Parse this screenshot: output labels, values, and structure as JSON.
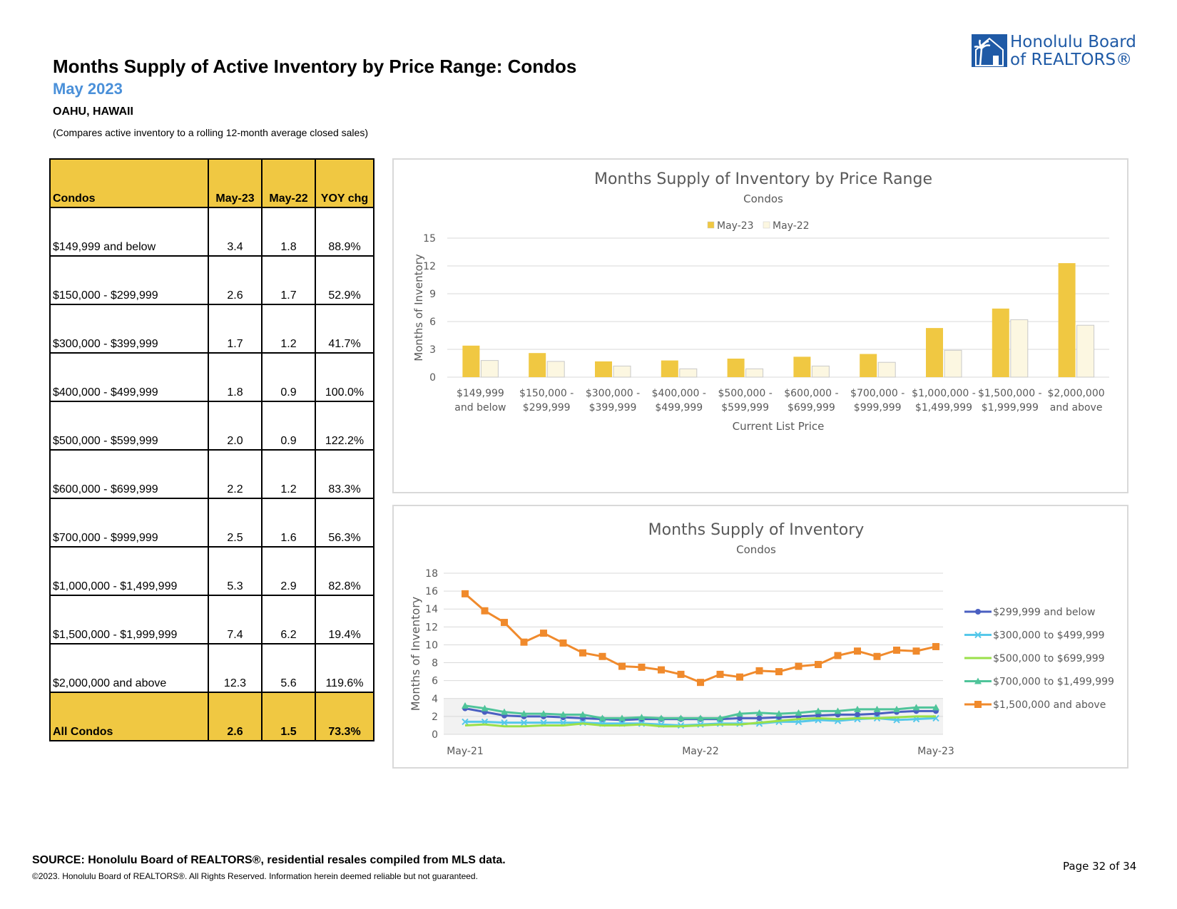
{
  "header": {
    "title": "Months Supply of Active Inventory by Price Range: Condos",
    "subtitle": "May 2023",
    "region": "OAHU, HAWAII",
    "note": "(Compares active inventory to a rolling 12-month average closed sales)"
  },
  "logo": {
    "line1": "Honolulu Board",
    "line2": "of REALTORS®"
  },
  "table": {
    "headers": [
      "Condos",
      "May-23",
      "May-22",
      "YOY chg"
    ],
    "rows": [
      [
        "$149,999 and below",
        "3.4",
        "1.8",
        "88.9%"
      ],
      [
        "$150,000 - $299,999",
        "2.6",
        "1.7",
        "52.9%"
      ],
      [
        "$300,000 - $399,999",
        "1.7",
        "1.2",
        "41.7%"
      ],
      [
        "$400,000 - $499,999",
        "1.8",
        "0.9",
        "100.0%"
      ],
      [
        "$500,000 - $599,999",
        "2.0",
        "0.9",
        "122.2%"
      ],
      [
        "$600,000 - $699,999",
        "2.2",
        "1.2",
        "83.3%"
      ],
      [
        "$700,000 - $999,999",
        "2.5",
        "1.6",
        "56.3%"
      ],
      [
        "$1,000,000 - $1,499,999",
        "5.3",
        "2.9",
        "82.8%"
      ],
      [
        "$1,500,000 - $1,999,999",
        "7.4",
        "6.2",
        "19.4%"
      ],
      [
        "$2,000,000 and above",
        "12.3",
        "5.6",
        "119.6%"
      ]
    ],
    "total": [
      "All Condos",
      "2.6",
      "1.5",
      "73.3%"
    ]
  },
  "chart_data": [
    {
      "type": "bar",
      "title": "Months Supply of Inventory by Price Range",
      "subtitle": "Condos",
      "xlabel": "Current List Price",
      "ylabel": "Months of Inventory",
      "ylim": [
        0,
        15
      ],
      "yticks": [
        0,
        3,
        6,
        9,
        12,
        15
      ],
      "legend_position": "top-center",
      "categories": [
        [
          "$149,999",
          "and below"
        ],
        [
          "$150,000 -",
          "$299,999"
        ],
        [
          "$300,000 -",
          "$399,999"
        ],
        [
          "$400,000 -",
          "$499,999"
        ],
        [
          "$500,000 -",
          "$599,999"
        ],
        [
          "$600,000 -",
          "$699,999"
        ],
        [
          "$700,000 -",
          "$999,999"
        ],
        [
          "$1,000,000 -",
          "$1,499,999"
        ],
        [
          "$1,500,000 -",
          "$1,999,999"
        ],
        [
          "$2,000,000",
          "and above"
        ]
      ],
      "series": [
        {
          "name": "May-23",
          "color": "#f0c842",
          "values": [
            3.4,
            2.6,
            1.7,
            1.8,
            2.0,
            2.2,
            2.5,
            5.3,
            7.4,
            12.3
          ]
        },
        {
          "name": "May-22",
          "color": "#fcf7e1",
          "values": [
            1.8,
            1.7,
            1.2,
            0.9,
            0.9,
            1.2,
            1.6,
            2.9,
            6.2,
            5.6
          ]
        }
      ]
    },
    {
      "type": "line",
      "title": "Months Supply of Inventory",
      "subtitle": "Condos",
      "ylabel": "Months of Inventory",
      "ylim": [
        0,
        18
      ],
      "yticks": [
        0,
        2,
        4,
        6,
        8,
        10,
        12,
        14,
        16,
        18
      ],
      "xtick_labels": [
        "May-21",
        "May-22",
        "May-23"
      ],
      "xtick_indices": [
        0,
        12,
        24
      ],
      "legend_position": "right",
      "series": [
        {
          "name": "$299,999 and below",
          "color": "#4a5fc1",
          "marker": "circle",
          "values": [
            2.9,
            2.5,
            2.1,
            2.0,
            2.0,
            1.9,
            1.8,
            1.7,
            1.6,
            1.7,
            1.7,
            1.7,
            1.7,
            1.7,
            1.8,
            1.8,
            1.9,
            2.0,
            2.1,
            2.2,
            2.2,
            2.3,
            2.5,
            2.6,
            2.6
          ]
        },
        {
          "name": "$300,000 to $499,999",
          "color": "#56c8ea",
          "marker": "x",
          "values": [
            1.4,
            1.4,
            1.3,
            1.3,
            1.3,
            1.3,
            1.3,
            1.2,
            1.2,
            1.2,
            1.1,
            1.0,
            1.1,
            1.2,
            1.2,
            1.2,
            1.4,
            1.4,
            1.6,
            1.5,
            1.7,
            1.8,
            1.6,
            1.7,
            1.8
          ]
        },
        {
          "name": "$500,000 to $699,999",
          "color": "#9be04a",
          "marker": "none",
          "values": [
            1.0,
            1.1,
            0.9,
            0.9,
            1.0,
            1.0,
            1.2,
            1.0,
            1.0,
            1.1,
            0.9,
            0.9,
            1.0,
            1.1,
            1.1,
            1.3,
            1.5,
            1.7,
            1.8,
            1.7,
            1.8,
            1.8,
            1.9,
            2.0,
            2.0
          ]
        },
        {
          "name": "$700,000 to $1,499,999",
          "color": "#4fc49a",
          "marker": "triangle",
          "values": [
            3.2,
            2.9,
            2.5,
            2.3,
            2.3,
            2.2,
            2.2,
            1.8,
            1.8,
            1.9,
            1.8,
            1.8,
            1.8,
            1.8,
            2.3,
            2.4,
            2.3,
            2.4,
            2.6,
            2.6,
            2.8,
            2.8,
            2.8,
            3.0,
            3.0
          ]
        },
        {
          "name": "$1,500,000 and above",
          "color": "#f08a2c",
          "marker": "square",
          "values": [
            15.7,
            13.8,
            12.5,
            10.3,
            11.3,
            10.2,
            9.1,
            8.7,
            7.6,
            7.5,
            7.2,
            6.7,
            5.8,
            6.7,
            6.4,
            7.1,
            7.0,
            7.6,
            7.8,
            8.8,
            9.3,
            8.7,
            9.4,
            9.3,
            9.8
          ]
        }
      ]
    }
  ],
  "footer": {
    "source": "SOURCE: Honolulu Board of REALTORS®, residential resales compiled from MLS data.",
    "copyright": "©2023. Honolulu Board of REALTORS®. All Rights Reserved. Information herein deemed reliable but not guaranteed.",
    "page": "Page 32 of 34"
  }
}
